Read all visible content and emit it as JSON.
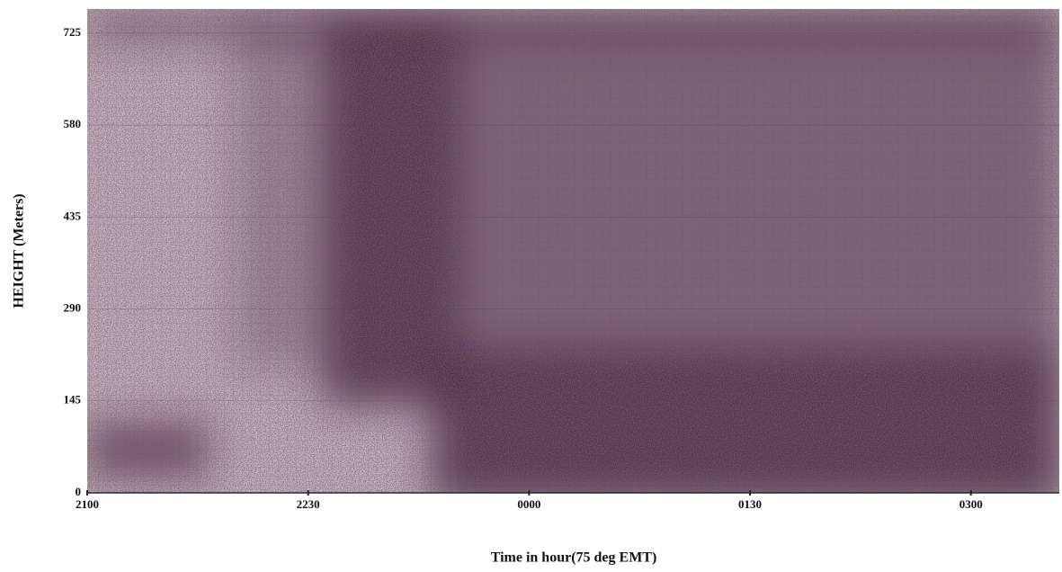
{
  "chart_data": {
    "type": "echogram",
    "ylabel": "HEIGHT (Meters)",
    "xlabel": "Time in hour(75 deg EMT)",
    "xlim": [
      21,
      27.6
    ],
    "xticks": [
      {
        "value": 21,
        "label": "2100"
      },
      {
        "value": 22.5,
        "label": "2230"
      },
      {
        "value": 24,
        "label": "0000"
      },
      {
        "value": 25.5,
        "label": "0130"
      },
      {
        "value": 27,
        "label": "0300"
      }
    ],
    "ylim": [
      0,
      763
    ],
    "yticks": [
      0,
      145,
      290,
      435,
      580,
      725
    ],
    "grid": true
  }
}
